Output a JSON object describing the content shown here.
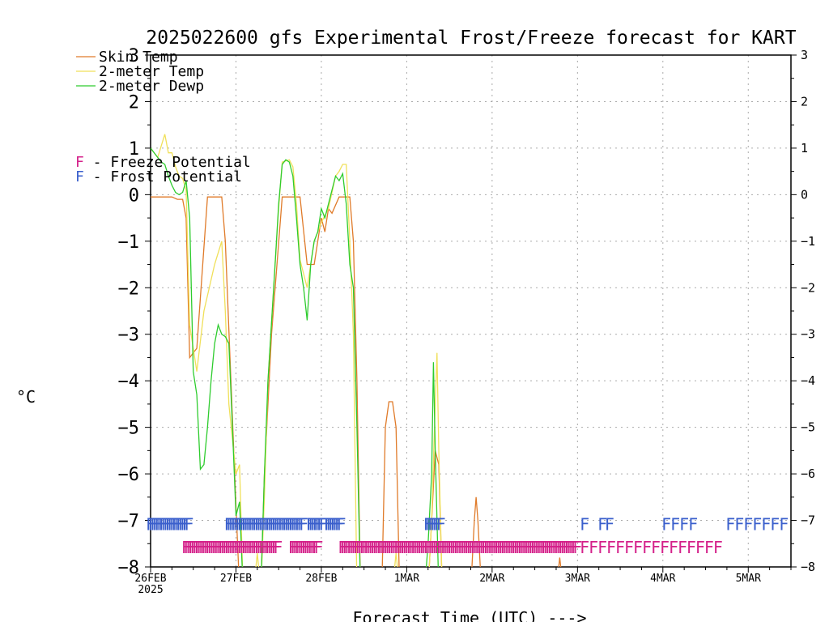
{
  "chart_data": {
    "type": "line",
    "title": "2025022600 gfs Experimental Frost/Freeze forecast for KART",
    "xlabel": "Forecast Time (UTC) --->",
    "ylabel": "°C",
    "ylim": [
      -8,
      3
    ],
    "yticks": [
      3,
      2,
      1,
      0,
      -1,
      -2,
      -3,
      -4,
      -5,
      -6,
      -7,
      -8
    ],
    "xlim": [
      0,
      180
    ],
    "x_units": "hours from 2025-02-26 00 UTC",
    "x_ticks": [
      {
        "x": 0,
        "label": "26FEB",
        "sublabel": "2025"
      },
      {
        "x": 24,
        "label": "27FEB"
      },
      {
        "x": 48,
        "label": "28FEB"
      },
      {
        "x": 72,
        "label": "1MAR"
      },
      {
        "x": 96,
        "label": "2MAR"
      },
      {
        "x": 120,
        "label": "3MAR"
      },
      {
        "x": 144,
        "label": "4MAR"
      },
      {
        "x": 168,
        "label": "5MAR"
      }
    ],
    "grid": true,
    "legend_position": "top-left",
    "series": [
      {
        "name": "Skin Temp",
        "color": "#e07b2a",
        "points": [
          [
            0,
            -0.05
          ],
          [
            6,
            -0.05
          ],
          [
            7.5,
            -0.1
          ],
          [
            9,
            -0.1
          ],
          [
            10,
            -0.5
          ],
          [
            11,
            -3.5
          ],
          [
            13,
            -3.3
          ],
          [
            16,
            -0.05
          ],
          [
            20,
            -0.05
          ],
          [
            21,
            -1.0
          ],
          [
            24,
            -6.7
          ],
          [
            25,
            -8.5
          ],
          [
            31,
            -8.5
          ],
          [
            32,
            -6.0
          ],
          [
            34,
            -3.0
          ],
          [
            37,
            -0.05
          ],
          [
            42,
            -0.05
          ],
          [
            44,
            -1.5
          ],
          [
            46,
            -1.5
          ],
          [
            47,
            -1.0
          ],
          [
            48,
            -0.5
          ],
          [
            49,
            -0.8
          ],
          [
            50,
            -0.3
          ],
          [
            51,
            -0.4
          ],
          [
            53,
            -0.05
          ],
          [
            56,
            -0.05
          ],
          [
            57,
            -1.0
          ],
          [
            58,
            -4.0
          ],
          [
            59,
            -8.5
          ],
          [
            65,
            -8.5
          ],
          [
            66,
            -5.0
          ],
          [
            67,
            -4.45
          ],
          [
            68,
            -4.45
          ],
          [
            69,
            -5.0
          ],
          [
            70,
            -8.5
          ],
          [
            78,
            -8.5
          ],
          [
            79,
            -7.0
          ],
          [
            80,
            -5.5
          ],
          [
            81,
            -5.8
          ],
          [
            82,
            -8.5
          ],
          [
            90,
            -8.5
          ],
          [
            91,
            -7.0
          ],
          [
            91.5,
            -6.5
          ],
          [
            92,
            -7.0
          ],
          [
            93,
            -8.5
          ],
          [
            114,
            -8.5
          ],
          [
            115,
            -7.8
          ],
          [
            116,
            -8.5
          ]
        ]
      },
      {
        "name": "2-meter Temp",
        "color": "#f0e05a",
        "points": [
          [
            0,
            1.0
          ],
          [
            2,
            0.8
          ],
          [
            4,
            1.3
          ],
          [
            5,
            0.9
          ],
          [
            6,
            0.9
          ],
          [
            7,
            0.6
          ],
          [
            8,
            0.4
          ],
          [
            9,
            0.35
          ],
          [
            10,
            0.1
          ],
          [
            11,
            -2.8
          ],
          [
            13,
            -3.8
          ],
          [
            15,
            -2.5
          ],
          [
            18,
            -1.5
          ],
          [
            20,
            -1.0
          ],
          [
            21,
            -2.5
          ],
          [
            22,
            -4.5
          ],
          [
            24,
            -6.0
          ],
          [
            25,
            -5.8
          ],
          [
            26,
            -8.5
          ],
          [
            29,
            -8.5
          ],
          [
            30,
            -7.7
          ],
          [
            31,
            -8.5
          ],
          [
            32,
            -6.5
          ],
          [
            33,
            -4.0
          ],
          [
            35,
            -1.5
          ],
          [
            36,
            -0.3
          ],
          [
            37,
            0.7
          ],
          [
            39,
            0.75
          ],
          [
            40,
            0.6
          ],
          [
            41,
            -0.2
          ],
          [
            42,
            -1.4
          ],
          [
            43,
            -1.7
          ],
          [
            44,
            -2.0
          ],
          [
            45,
            -1.5
          ],
          [
            46,
            -1.0
          ],
          [
            47,
            -0.8
          ],
          [
            48,
            -0.6
          ],
          [
            50,
            -0.3
          ],
          [
            52,
            0.4
          ],
          [
            53,
            0.5
          ],
          [
            54,
            0.65
          ],
          [
            55,
            0.65
          ],
          [
            56,
            -1.0
          ],
          [
            57,
            -3.0
          ],
          [
            58,
            -8.5
          ],
          [
            68,
            -8.5
          ],
          [
            69,
            -7.7
          ],
          [
            70,
            -8.5
          ],
          [
            78,
            -8.5
          ],
          [
            79,
            -7.0
          ],
          [
            80,
            -4.5
          ],
          [
            80.5,
            -3.4
          ],
          [
            81,
            -5.5
          ],
          [
            82,
            -8.5
          ]
        ]
      },
      {
        "name": "2-meter Dewp",
        "color": "#2ecc2e",
        "points": [
          [
            0,
            1.0
          ],
          [
            2,
            0.8
          ],
          [
            3,
            0.7
          ],
          [
            4,
            0.65
          ],
          [
            5,
            0.4
          ],
          [
            6,
            0.2
          ],
          [
            7,
            0.05
          ],
          [
            8,
            0.0
          ],
          [
            9,
            0.05
          ],
          [
            10,
            0.3
          ],
          [
            11,
            -0.5
          ],
          [
            12,
            -3.8
          ],
          [
            13,
            -4.3
          ],
          [
            14,
            -5.9
          ],
          [
            15,
            -5.8
          ],
          [
            16,
            -5.0
          ],
          [
            17,
            -4.0
          ],
          [
            18,
            -3.2
          ],
          [
            19,
            -2.8
          ],
          [
            20,
            -3.0
          ],
          [
            21,
            -3.05
          ],
          [
            22,
            -3.2
          ],
          [
            23,
            -5.0
          ],
          [
            24,
            -6.9
          ],
          [
            25,
            -6.6
          ],
          [
            26,
            -8.5
          ],
          [
            31,
            -8.5
          ],
          [
            32,
            -6.0
          ],
          [
            33,
            -4.0
          ],
          [
            35,
            -1.5
          ],
          [
            36,
            -0.2
          ],
          [
            37,
            0.65
          ],
          [
            38,
            0.75
          ],
          [
            39,
            0.7
          ],
          [
            40,
            0.4
          ],
          [
            41,
            -0.5
          ],
          [
            42,
            -1.5
          ],
          [
            43,
            -2.0
          ],
          [
            44,
            -2.7
          ],
          [
            45,
            -1.5
          ],
          [
            46,
            -1.0
          ],
          [
            47,
            -0.8
          ],
          [
            48,
            -0.3
          ],
          [
            49,
            -0.5
          ],
          [
            50,
            -0.2
          ],
          [
            51,
            0.1
          ],
          [
            52,
            0.4
          ],
          [
            53,
            0.3
          ],
          [
            54,
            0.45
          ],
          [
            55,
            -0.2
          ],
          [
            56,
            -1.5
          ],
          [
            57,
            -2.0
          ],
          [
            58,
            -5.0
          ],
          [
            59,
            -8.5
          ],
          [
            77,
            -8.5
          ],
          [
            78,
            -7.5
          ],
          [
            79,
            -6.0
          ],
          [
            79.5,
            -3.6
          ],
          [
            80,
            -5.5
          ],
          [
            81,
            -8.5
          ]
        ]
      }
    ],
    "annotations": [
      {
        "name": "Frost Potential",
        "label": "F",
        "color": "#3a5fcc",
        "y": -7.05,
        "hours": [
          0,
          0.6,
          1.2,
          1.8,
          2.4,
          3,
          3.6,
          4.2,
          4.8,
          5.4,
          6,
          6.6,
          7.2,
          7.8,
          8.4,
          9,
          9.6,
          10.2,
          10.8,
          22,
          22.6,
          23.2,
          23.8,
          24.4,
          25,
          25.6,
          26.2,
          26.8,
          27.4,
          28,
          28.6,
          29.2,
          29.8,
          30.4,
          31,
          31.6,
          32.2,
          32.8,
          33.4,
          34,
          34.6,
          35.2,
          35.8,
          36.4,
          37,
          37.6,
          38.2,
          38.8,
          39.4,
          40,
          40.6,
          41.2,
          41.8,
          42.4,
          43,
          45,
          45.6,
          46.2,
          46.8,
          47.4,
          48,
          48.6,
          50,
          50.6,
          51.2,
          51.8,
          52.4,
          53,
          53.6,
          78,
          78.6,
          79.2,
          79.8,
          80.4,
          81,
          81.6,
          122,
          127,
          129,
          145,
          147.5,
          150,
          152.5,
          163,
          165.5,
          168,
          170.5,
          173,
          175.5,
          178
        ]
      },
      {
        "name": "Freeze Potential",
        "label": "F",
        "color": "#d4218a",
        "y": -7.55,
        "hours": [
          10,
          10.6,
          11.2,
          11.8,
          12.4,
          13,
          13.6,
          14.2,
          14.8,
          15.4,
          16,
          16.6,
          17.2,
          17.8,
          18.4,
          19,
          19.6,
          20.2,
          20.8,
          21.4,
          22,
          22.6,
          23.2,
          23.8,
          24.4,
          25,
          25.6,
          26.2,
          26.8,
          27.4,
          28,
          28.6,
          29.2,
          29.8,
          30.4,
          31,
          31.6,
          32.2,
          32.8,
          33.4,
          34,
          34.6,
          35.2,
          35.8,
          40,
          40.6,
          41.2,
          41.8,
          42.4,
          43,
          43.6,
          44.2,
          44.8,
          45.4,
          46,
          46.6,
          47.2,
          54,
          54.6,
          55.2,
          55.8,
          56.4,
          57,
          57.6,
          58.2,
          58.8,
          59.4,
          60,
          60.6,
          61.2,
          61.8,
          62.4,
          63,
          63.6,
          64.2,
          64.8,
          65.4,
          66,
          66.6,
          67.2,
          67.8,
          68.4,
          69,
          69.6,
          70.2,
          70.8,
          71.4,
          72,
          72.6,
          73.2,
          73.8,
          74.4,
          75,
          75.6,
          76.2,
          76.8,
          77.4,
          78,
          78.6,
          79.2,
          79.8,
          80.4,
          81,
          81.6,
          82.2,
          82.8,
          83.4,
          84,
          84.6,
          85.2,
          85.8,
          86.4,
          87,
          87.6,
          88.2,
          88.8,
          89.4,
          90,
          90.6,
          91.2,
          91.8,
          92.4,
          93,
          93.6,
          94.2,
          94.8,
          95.4,
          96,
          96.6,
          97.2,
          97.8,
          98.4,
          99,
          99.6,
          100.2,
          100.8,
          101.4,
          102,
          102.6,
          103.2,
          103.8,
          104.4,
          105,
          105.6,
          106.2,
          106.8,
          107.4,
          108,
          108.6,
          109.2,
          109.8,
          110.4,
          111,
          111.6,
          112.2,
          112.8,
          113.4,
          114,
          114.6,
          115.2,
          115.8,
          116.4,
          117,
          117.6,
          118.2,
          118.8,
          119.4,
          120,
          122,
          124.5,
          127,
          129.5,
          132,
          134.5,
          137,
          139.5,
          142,
          144.5,
          147,
          149.5,
          152,
          154.5,
          157,
          159.5
        ]
      }
    ],
    "legend": [
      {
        "text": "Skin Temp",
        "color": "#e07b2a",
        "type": "line"
      },
      {
        "text": "2-meter Temp",
        "color": "#f0e05a",
        "type": "line"
      },
      {
        "text": "2-meter Dewp",
        "color": "#2ecc2e",
        "type": "line"
      },
      {
        "text": "F",
        "suffix": " - Freeze Potential",
        "color": "#d4218a",
        "type": "marker"
      },
      {
        "text": "F",
        "suffix": " - Frost Potential",
        "color": "#3a5fcc",
        "type": "marker"
      }
    ]
  }
}
